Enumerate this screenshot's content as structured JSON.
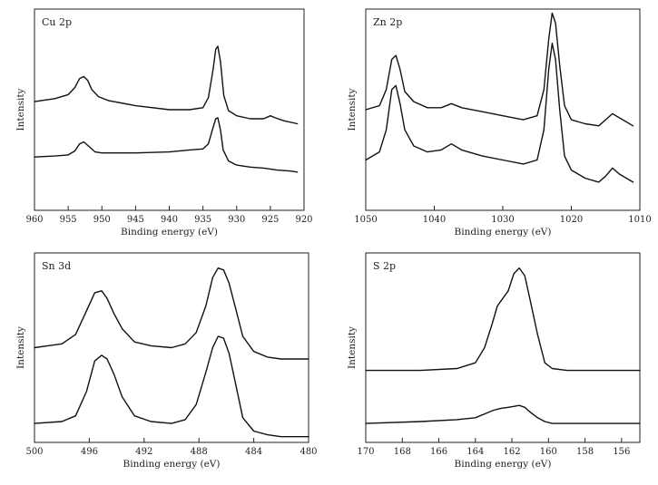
{
  "chart_data": [
    {
      "type": "line",
      "title": "Cu 2p",
      "xlabel": "Binding energy (eV)",
      "ylabel": "Intensity",
      "xlim": [
        960,
        920
      ],
      "x_reversed": true,
      "xticks": [
        960,
        955,
        950,
        945,
        940,
        935,
        930,
        925,
        920
      ],
      "ylim": [
        0,
        1
      ],
      "grid": false,
      "series": [
        {
          "x": [
            960,
            957,
            955,
            954,
            953.3,
            952.7,
            952.1,
            951.5,
            950.5,
            949,
            945,
            940,
            937,
            935,
            934.2,
            933.5,
            933.1,
            932.8,
            932.4,
            931.9,
            931.2,
            930,
            928,
            926,
            925,
            924.3,
            923,
            921
          ],
          "y": [
            0.54,
            0.555,
            0.575,
            0.61,
            0.655,
            0.665,
            0.645,
            0.6,
            0.565,
            0.545,
            0.52,
            0.5,
            0.5,
            0.51,
            0.56,
            0.7,
            0.8,
            0.815,
            0.74,
            0.57,
            0.495,
            0.47,
            0.455,
            0.455,
            0.47,
            0.46,
            0.445,
            0.43
          ]
        },
        {
          "x": [
            960,
            957,
            955,
            954,
            953.3,
            952.7,
            952,
            951,
            950,
            945,
            940,
            937,
            935,
            934.2,
            933.6,
            933.1,
            932.8,
            932.4,
            932,
            931.2,
            930,
            928,
            926,
            924,
            922,
            921
          ],
          "y": [
            0.265,
            0.27,
            0.275,
            0.295,
            0.33,
            0.34,
            0.32,
            0.29,
            0.285,
            0.285,
            0.29,
            0.3,
            0.305,
            0.33,
            0.4,
            0.455,
            0.46,
            0.4,
            0.3,
            0.245,
            0.225,
            0.215,
            0.21,
            0.2,
            0.195,
            0.19
          ]
        }
      ]
    },
    {
      "type": "line",
      "title": "Zn 2p",
      "xlabel": "Binding energy (eV)",
      "ylabel": "Intensity",
      "xlim": [
        1050,
        1010
      ],
      "x_reversed": true,
      "xticks": [
        1050,
        1040,
        1030,
        1020,
        1010
      ],
      "ylim": [
        0,
        1
      ],
      "grid": false,
      "series": [
        {
          "x": [
            1050,
            1048,
            1047,
            1046.2,
            1045.6,
            1045,
            1044.3,
            1043,
            1041,
            1039,
            1037.5,
            1036,
            1033,
            1030,
            1027,
            1025,
            1024,
            1023.3,
            1022.8,
            1022.3,
            1021.7,
            1021,
            1020,
            1018,
            1016,
            1015,
            1014,
            1013,
            1011
          ],
          "y": [
            0.5,
            0.52,
            0.6,
            0.75,
            0.77,
            0.7,
            0.59,
            0.54,
            0.51,
            0.51,
            0.53,
            0.51,
            0.49,
            0.47,
            0.45,
            0.47,
            0.6,
            0.85,
            0.98,
            0.93,
            0.72,
            0.52,
            0.45,
            0.43,
            0.42,
            0.45,
            0.48,
            0.46,
            0.42
          ]
        },
        {
          "x": [
            1050,
            1048,
            1047,
            1046.2,
            1045.6,
            1045,
            1044.3,
            1043,
            1041,
            1039,
            1037.5,
            1036,
            1033,
            1030,
            1027,
            1025,
            1024,
            1023.3,
            1022.8,
            1022.3,
            1021.7,
            1021,
            1020,
            1018,
            1016,
            1015,
            1014,
            1013,
            1011
          ],
          "y": [
            0.25,
            0.29,
            0.4,
            0.6,
            0.62,
            0.53,
            0.4,
            0.32,
            0.29,
            0.3,
            0.33,
            0.3,
            0.27,
            0.25,
            0.23,
            0.25,
            0.4,
            0.7,
            0.83,
            0.75,
            0.5,
            0.27,
            0.2,
            0.16,
            0.14,
            0.17,
            0.21,
            0.18,
            0.14
          ]
        }
      ]
    },
    {
      "type": "line",
      "title": "Sn 3d",
      "xlabel": "Binding energy (eV)",
      "ylabel": "Intensity",
      "xlim": [
        500,
        480
      ],
      "x_reversed": true,
      "xticks": [
        500,
        496,
        492,
        488,
        484,
        480
      ],
      "ylim": [
        0,
        1
      ],
      "grid": false,
      "series": [
        {
          "x": [
            500,
            498,
            497,
            496.3,
            495.6,
            495.1,
            494.7,
            494.2,
            493.6,
            492.7,
            491.5,
            490,
            489,
            488.2,
            487.5,
            487,
            486.6,
            486.2,
            485.8,
            485.3,
            484.8,
            484,
            483,
            482,
            480
          ],
          "y": [
            0.5,
            0.52,
            0.57,
            0.68,
            0.79,
            0.8,
            0.76,
            0.68,
            0.6,
            0.53,
            0.51,
            0.5,
            0.52,
            0.58,
            0.72,
            0.87,
            0.92,
            0.91,
            0.84,
            0.7,
            0.56,
            0.48,
            0.45,
            0.44,
            0.44
          ]
        },
        {
          "x": [
            500,
            498,
            497,
            496.2,
            495.6,
            495.1,
            494.7,
            494.2,
            493.6,
            492.7,
            491.5,
            490,
            489,
            488.2,
            487.5,
            487,
            486.6,
            486.2,
            485.8,
            485.3,
            484.8,
            484,
            483,
            482,
            480
          ],
          "y": [
            0.1,
            0.11,
            0.14,
            0.27,
            0.43,
            0.46,
            0.44,
            0.36,
            0.24,
            0.14,
            0.11,
            0.1,
            0.12,
            0.2,
            0.37,
            0.5,
            0.56,
            0.55,
            0.47,
            0.3,
            0.13,
            0.06,
            0.04,
            0.03,
            0.03
          ]
        }
      ]
    },
    {
      "type": "line",
      "title": "S 2p",
      "xlabel": "Binding energy (eV)",
      "ylabel": "Intensity",
      "xlim": [
        170,
        155
      ],
      "x_reversed": true,
      "xticks": [
        170,
        168,
        166,
        164,
        162,
        160,
        158,
        156
      ],
      "ylim": [
        0,
        1
      ],
      "grid": false,
      "series": [
        {
          "x": [
            170,
            167,
            165,
            164,
            163.5,
            163.1,
            162.8,
            162.5,
            162.2,
            161.9,
            161.6,
            161.3,
            161,
            160.6,
            160.2,
            159.8,
            159,
            157,
            155
          ],
          "y": [
            0.38,
            0.38,
            0.39,
            0.42,
            0.5,
            0.62,
            0.72,
            0.76,
            0.8,
            0.89,
            0.92,
            0.88,
            0.75,
            0.57,
            0.42,
            0.39,
            0.38,
            0.38,
            0.38
          ]
        },
        {
          "x": [
            170,
            167,
            165,
            164,
            163.5,
            163,
            162.6,
            162.2,
            161.9,
            161.6,
            161.3,
            161,
            160.6,
            160.2,
            159.8,
            159,
            157,
            155
          ],
          "y": [
            0.1,
            0.11,
            0.12,
            0.13,
            0.15,
            0.17,
            0.18,
            0.185,
            0.19,
            0.195,
            0.185,
            0.16,
            0.13,
            0.11,
            0.1,
            0.1,
            0.1,
            0.1
          ]
        }
      ]
    }
  ]
}
